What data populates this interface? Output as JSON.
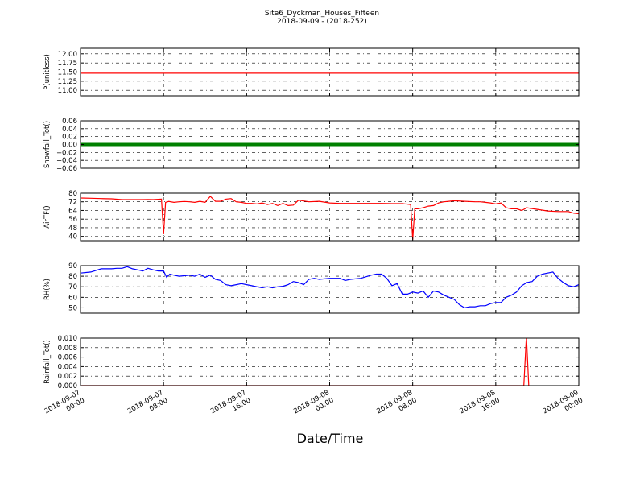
{
  "figure": {
    "title": "Site6_Dyckman_Houses_Fifteen",
    "subtitle": "2018-09-09 - (2018-252)",
    "xlabel": "Date/Time"
  },
  "chart_data": [
    {
      "type": "line",
      "ylabel": "P(unitless)",
      "ylim": [
        10.85,
        12.15
      ],
      "yticks": [
        11.0,
        11.25,
        11.5,
        11.75,
        12.0
      ],
      "ytick_labels": [
        "11.00",
        "11.25",
        "11.50",
        "11.75",
        "12.00"
      ],
      "color": "#ff0000",
      "x_hours": [
        0,
        48
      ],
      "grid": true,
      "series": [
        {
          "x": [
            0,
            48
          ],
          "y": [
            11.47,
            11.47
          ]
        }
      ]
    },
    {
      "type": "line",
      "ylabel": "Snowfall_Tot()",
      "ylim": [
        -0.06,
        0.06
      ],
      "yticks": [
        -0.06,
        -0.04,
        -0.02,
        0.0,
        0.02,
        0.04,
        0.06
      ],
      "ytick_labels": [
        "−0.06",
        "−0.04",
        "−0.02",
        "0.00",
        "0.02",
        "0.04",
        "0.06"
      ],
      "color": "#008000",
      "grid": true,
      "series": [
        {
          "x": [
            0,
            48
          ],
          "y": [
            0,
            0
          ]
        }
      ]
    },
    {
      "type": "line",
      "ylabel": "AirTF()",
      "ylim": [
        36,
        80
      ],
      "yticks": [
        40,
        48,
        56,
        64,
        72,
        80
      ],
      "ytick_labels": [
        "40",
        "48",
        "56",
        "64",
        "72",
        "80"
      ],
      "color": "#ff0000",
      "grid": true,
      "series": [
        {
          "x": [
            0,
            1,
            2,
            3,
            3.5,
            4,
            5,
            6,
            6.5,
            7,
            7.5,
            7.8,
            8.0,
            8.2,
            8.5,
            9,
            9.5,
            10,
            10.5,
            11,
            11.5,
            12,
            12.5,
            13,
            13.5,
            14,
            14.5,
            15,
            15.5,
            16,
            16.5,
            17,
            17.5,
            18,
            18.5,
            19,
            19.5,
            20,
            20.5,
            21,
            22,
            23,
            24,
            25,
            26,
            27,
            28,
            29,
            30,
            31,
            31.5,
            31.8,
            32.0,
            32.2,
            32.5,
            33,
            33.5,
            34,
            34.5,
            35,
            35.5,
            36,
            37,
            38,
            38.5,
            39,
            39.5,
            40,
            40.5,
            41,
            41.5,
            42,
            42.5,
            43,
            44,
            45,
            46,
            46.5,
            47,
            47.5,
            48
          ],
          "y": [
            75.5,
            75.3,
            75.0,
            74.8,
            74.4,
            74.0,
            74.0,
            74.0,
            74.2,
            74.0,
            74.3,
            74.5,
            42.0,
            71.5,
            72.3,
            71.5,
            72.0,
            72.3,
            72.0,
            71.5,
            72.5,
            71.5,
            77.0,
            72.5,
            72.5,
            74.5,
            75.0,
            72.0,
            71.5,
            70.5,
            70.5,
            70.0,
            71.0,
            69.5,
            70.5,
            68.5,
            70.5,
            68.5,
            69.0,
            73.5,
            72.0,
            72.5,
            71.0,
            70.5,
            70.5,
            70.5,
            70.5,
            70.5,
            70.3,
            70.3,
            69.8,
            69.5,
            37.0,
            65.5,
            65.5,
            66.5,
            68.0,
            68.5,
            71.0,
            72.0,
            72.5,
            73.0,
            72.5,
            72.0,
            72.0,
            71.5,
            71.0,
            70.0,
            71.0,
            66.5,
            65.5,
            65.5,
            64.0,
            66.5,
            65.0,
            63.5,
            63.0,
            63.0,
            63.0,
            61.5,
            61.0
          ]
        }
      ]
    },
    {
      "type": "line",
      "ylabel": "RH(%)",
      "ylim": [
        45,
        90
      ],
      "yticks": [
        50,
        60,
        70,
        80,
        90
      ],
      "ytick_labels": [
        "50",
        "60",
        "70",
        "80",
        "90"
      ],
      "color": "#0000ff",
      "grid": true,
      "series": [
        {
          "x": [
            0,
            1,
            2,
            3,
            3.5,
            4,
            4.5,
            5,
            5.5,
            6,
            6.5,
            7,
            7.5,
            8,
            8.3,
            8.6,
            9,
            9.5,
            10,
            10.5,
            11,
            11.5,
            12,
            12.5,
            13,
            13.5,
            14,
            14.5,
            15,
            15.5,
            16,
            16.5,
            17,
            17.5,
            18,
            18.5,
            19,
            19.5,
            20,
            20.5,
            21,
            21.5,
            22,
            22.5,
            23,
            24,
            25,
            25.5,
            26,
            27,
            28,
            28.5,
            29,
            29.5,
            30,
            30.5,
            31,
            31.5,
            32,
            32.5,
            33,
            33.5,
            34,
            34.5,
            35,
            35.5,
            36,
            36.5,
            37,
            37.5,
            38,
            38.5,
            39,
            39.5,
            40,
            40.5,
            41,
            41.5,
            42,
            42.5,
            43,
            43.5,
            44,
            44.5,
            45,
            45.5,
            46,
            46.5,
            47,
            47.5,
            48
          ],
          "y": [
            83,
            84,
            87,
            87,
            87.5,
            87.5,
            89,
            87,
            86,
            85,
            87.5,
            86,
            85,
            85,
            79,
            82,
            81,
            80,
            80.5,
            81,
            80,
            82,
            79,
            81,
            77,
            76,
            72,
            71,
            72,
            73,
            72,
            71,
            70,
            69,
            70,
            69,
            70,
            70.5,
            72,
            75,
            74,
            72,
            77,
            78,
            77,
            78,
            78,
            76,
            77,
            78,
            81,
            82,
            82,
            78,
            71,
            73,
            63,
            63,
            65,
            64,
            66,
            60,
            66,
            65,
            62,
            60,
            58,
            53,
            50,
            51,
            51,
            52,
            52,
            54,
            55,
            55,
            60,
            62,
            65,
            71,
            74,
            75,
            80,
            82,
            83,
            84,
            78,
            74,
            71,
            70,
            72
          ]
        }
      ]
    },
    {
      "type": "line",
      "ylabel": "Rainfall_Tot()",
      "ylim": [
        0,
        0.01
      ],
      "yticks": [
        0.0,
        0.002,
        0.004,
        0.006,
        0.008,
        0.01
      ],
      "ytick_labels": [
        "0.000",
        "0.002",
        "0.004",
        "0.006",
        "0.008",
        "0.010"
      ],
      "color": "#ff0000",
      "grid": true,
      "series": [
        {
          "x": [
            0,
            42.7,
            42.95,
            43.2,
            48
          ],
          "y": [
            0,
            0,
            0.0105,
            -0.001,
            0
          ]
        }
      ]
    }
  ],
  "xaxis": {
    "x_hours_range": [
      0,
      48
    ],
    "tick_hours": [
      0,
      8,
      16,
      24,
      32,
      40,
      48
    ],
    "tick_labels": [
      [
        "2018-09-07",
        "00:00"
      ],
      [
        "2018-09-07",
        "08:00"
      ],
      [
        "2018-09-07",
        "16:00"
      ],
      [
        "2018-09-08",
        "00:00"
      ],
      [
        "2018-09-08",
        "08:00"
      ],
      [
        "2018-09-08",
        "16:00"
      ],
      [
        "2018-09-09",
        "00:00"
      ]
    ]
  }
}
